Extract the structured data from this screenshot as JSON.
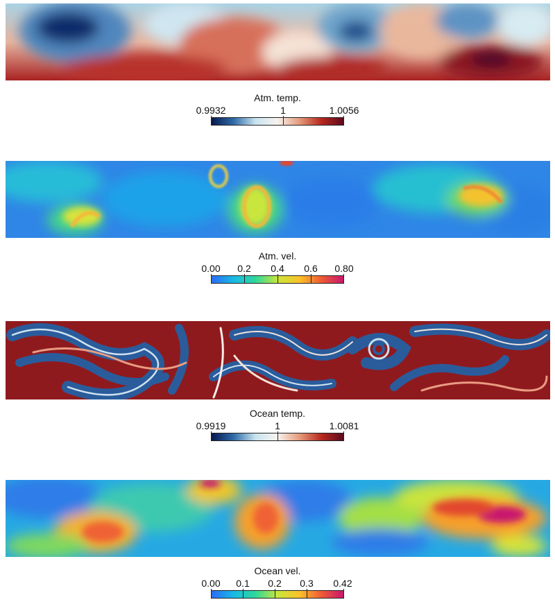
{
  "panels": [
    {
      "id": "atm-temp",
      "colorbar": {
        "title": "Atm. temp.",
        "ticks": [
          "0.9932",
          "1",
          "1.0056"
        ],
        "colors": [
          "#08184f",
          "#2f6ba8",
          "#c9e4ef",
          "#f7f3ef",
          "#e59b7b",
          "#b7281f",
          "#5d0a1e"
        ]
      }
    },
    {
      "id": "atm-vel",
      "colorbar": {
        "title": "Atm. vel.",
        "ticks": [
          "0.00",
          "0.2",
          "0.4",
          "0.6",
          "0.80"
        ],
        "colors": [
          "#2a6cf5",
          "#18b9e6",
          "#2fd89a",
          "#c8e63c",
          "#fbc229",
          "#ef5a36",
          "#c8176e"
        ]
      }
    },
    {
      "id": "ocean-temp",
      "colorbar": {
        "title": "Ocean temp.",
        "ticks": [
          "0.9919",
          "1",
          "1.0081"
        ],
        "colors": [
          "#08184f",
          "#2f6ba8",
          "#c9e4ef",
          "#f7f3ef",
          "#e59b7b",
          "#b7281f",
          "#5d0a1e"
        ]
      }
    },
    {
      "id": "ocean-vel",
      "colorbar": {
        "title": "Ocean vel.",
        "ticks": [
          "0.00",
          "0.1",
          "0.2",
          "0.3",
          "0.42"
        ],
        "colors": [
          "#2a6cf5",
          "#18b9e6",
          "#2fd89a",
          "#c8e63c",
          "#fbc229",
          "#ef5a36",
          "#c8176e"
        ]
      }
    }
  ]
}
